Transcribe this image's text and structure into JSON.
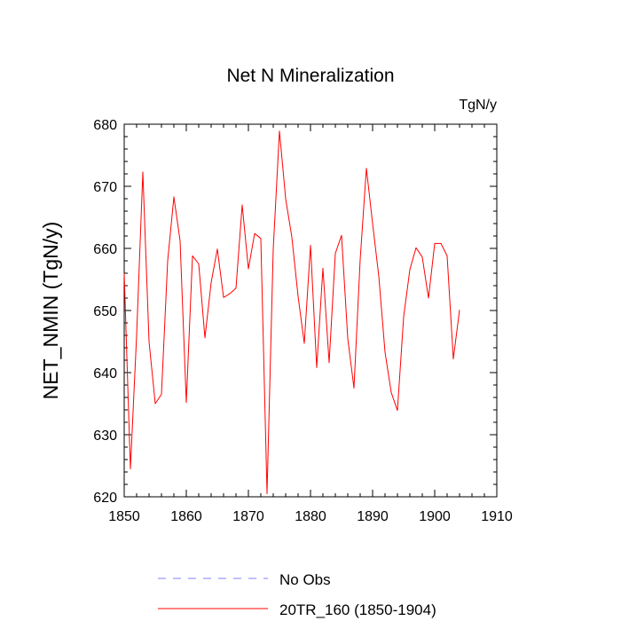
{
  "chart_data": {
    "type": "line",
    "title": "Net N Mineralization",
    "units_label": "TgN/y",
    "ylabel": "NET_NMIN  (TgN/y)",
    "xlabel": "",
    "xlim": [
      1850,
      1910
    ],
    "ylim": [
      620,
      680
    ],
    "x_ticks": [
      1850,
      1860,
      1870,
      1880,
      1890,
      1900,
      1910
    ],
    "y_ticks": [
      620,
      630,
      640,
      650,
      660,
      670,
      680
    ],
    "series": [
      {
        "name": "20TR_160 (1850-1904)",
        "color": "#ff0000",
        "dash": "solid",
        "x": [
          1850,
          1851,
          1852,
          1853,
          1854,
          1855,
          1856,
          1857,
          1858,
          1859,
          1860,
          1861,
          1862,
          1863,
          1864,
          1865,
          1866,
          1867,
          1868,
          1869,
          1870,
          1871,
          1872,
          1873,
          1874,
          1875,
          1876,
          1877,
          1878,
          1879,
          1880,
          1881,
          1882,
          1883,
          1884,
          1885,
          1886,
          1887,
          1888,
          1889,
          1890,
          1891,
          1892,
          1893,
          1894,
          1895,
          1896,
          1897,
          1898,
          1899,
          1900,
          1901,
          1902,
          1903,
          1904
        ],
        "values": [
          656,
          624.5,
          646,
          672.3,
          645,
          635,
          636.5,
          658,
          668.3,
          661.2,
          635.2,
          658.8,
          657.5,
          645.6,
          654.5,
          659.9,
          652.1,
          652.7,
          653.6,
          667.0,
          656.7,
          662.4,
          661.6,
          620.5,
          659.9,
          678.9,
          668.0,
          661.8,
          652.3,
          644.7,
          660.5,
          640.8,
          656.8,
          641.6,
          659.2,
          662.1,
          645.5,
          637.5,
          658.2,
          672.9,
          664.0,
          655.5,
          643.3,
          636.8,
          633.9,
          649.0,
          656.6,
          660.1,
          658.6,
          652.0,
          660.8,
          660.8,
          658.8,
          642.2,
          650.1
        ]
      },
      {
        "name": "No Obs",
        "color": "#8080ff",
        "dash": "dashed",
        "x": [],
        "values": []
      }
    ],
    "legend": {
      "position": "bottom",
      "entries": [
        {
          "label": "No Obs",
          "color": "#8080ff",
          "dash": "dashed"
        },
        {
          "label": "20TR_160 (1850-1904)",
          "color": "#ff0000",
          "dash": "solid"
        }
      ]
    }
  }
}
